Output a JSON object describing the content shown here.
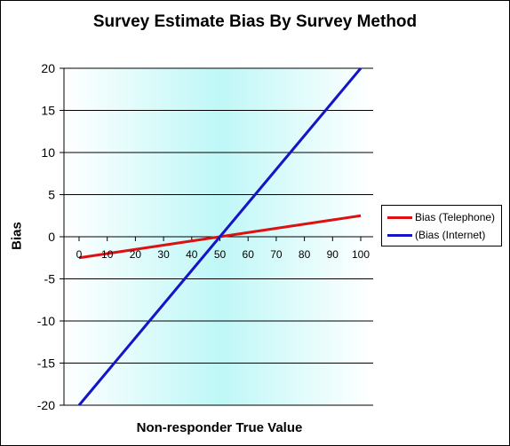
{
  "chart_data": {
    "type": "line",
    "title": "Survey Estimate Bias By Survey Method",
    "xlabel": "Non-responder True Value",
    "ylabel": "Bias",
    "x": [
      0,
      10,
      20,
      30,
      40,
      50,
      60,
      70,
      80,
      90,
      100
    ],
    "x_ticks": [
      "0",
      "10",
      "20",
      "30",
      "40",
      "50",
      "60",
      "70",
      "80",
      "90",
      "100"
    ],
    "xlim": [
      0,
      100
    ],
    "ylim": [
      -20,
      20
    ],
    "y_ticks": [
      "20",
      "15",
      "10",
      "5",
      "0",
      "-5",
      "-10",
      "-15",
      "-20"
    ],
    "grid": "horizontal",
    "legend_position": "right",
    "background": "gradient white-cyan-white",
    "series": [
      {
        "name": "Bias (Telephone)",
        "color": "#dd1111",
        "values": [
          -2.5,
          -2,
          -1.5,
          -1,
          -0.5,
          0,
          0.5,
          1,
          1.5,
          2,
          2.5
        ]
      },
      {
        "name": "(Bias (Internet)",
        "color": "#1414c8",
        "values": [
          -20,
          -16,
          -12,
          -8,
          -4,
          0,
          4,
          8,
          12,
          16,
          20
        ]
      }
    ]
  }
}
